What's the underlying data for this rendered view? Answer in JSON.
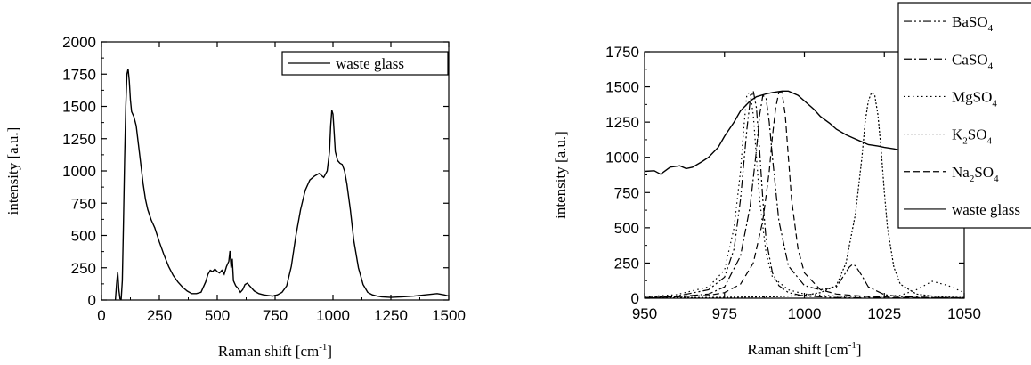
{
  "chart_data": [
    {
      "type": "line",
      "xlabel": "Raman shift [cm",
      "xlabel_sup": "-1",
      "xlabel_tail": "]",
      "ylabel": "intensity [a.u.]",
      "xlim": [
        0,
        1500
      ],
      "ylim": [
        0,
        2000
      ],
      "xticks": [
        0,
        250,
        500,
        750,
        1000,
        1250,
        1500
      ],
      "yticks": [
        0,
        250,
        500,
        750,
        1000,
        1250,
        1500,
        1750,
        2000
      ],
      "legend_position": "top-right",
      "series": [
        {
          "name": "waste glass",
          "style": "solid",
          "x": [
            60,
            65,
            70,
            75,
            80,
            85,
            90,
            95,
            100,
            105,
            110,
            115,
            120,
            125,
            130,
            140,
            150,
            160,
            170,
            180,
            190,
            200,
            215,
            230,
            250,
            270,
            290,
            310,
            330,
            350,
            370,
            390,
            410,
            430,
            450,
            460,
            470,
            480,
            490,
            500,
            510,
            520,
            530,
            540,
            550,
            555,
            560,
            565,
            570,
            580,
            590,
            600,
            610,
            620,
            630,
            640,
            660,
            680,
            700,
            720,
            740,
            760,
            780,
            800,
            820,
            840,
            860,
            880,
            900,
            920,
            940,
            960,
            975,
            985,
            990,
            995,
            1000,
            1005,
            1010,
            1020,
            1030,
            1040,
            1050,
            1060,
            1075,
            1090,
            1110,
            1130,
            1150,
            1170,
            1190,
            1210,
            1250,
            1300,
            1350,
            1400,
            1450,
            1480,
            1500
          ],
          "y": [
            0,
            120,
            220,
            80,
            10,
            5,
            150,
            600,
            1100,
            1500,
            1750,
            1790,
            1700,
            1550,
            1460,
            1420,
            1350,
            1200,
            1050,
            900,
            780,
            700,
            620,
            560,
            450,
            350,
            260,
            190,
            140,
            100,
            70,
            50,
            50,
            60,
            140,
            200,
            230,
            220,
            240,
            220,
            210,
            230,
            200,
            260,
            300,
            380,
            250,
            320,
            150,
            110,
            90,
            60,
            80,
            120,
            130,
            110,
            70,
            50,
            40,
            35,
            30,
            40,
            60,
            110,
            260,
            500,
            700,
            850,
            930,
            960,
            980,
            950,
            1000,
            1150,
            1350,
            1470,
            1440,
            1300,
            1150,
            1080,
            1060,
            1050,
            1000,
            900,
            700,
            460,
            250,
            120,
            60,
            40,
            30,
            25,
            20,
            25,
            30,
            40,
            50,
            40,
            30
          ]
        }
      ]
    },
    {
      "type": "line",
      "xlabel": "Raman shift [cm",
      "xlabel_sup": "-1",
      "xlabel_tail": "]",
      "ylabel": "intensity [a.u.]",
      "xlim": [
        950,
        1050
      ],
      "ylim": [
        0,
        1750
      ],
      "xticks": [
        950,
        975,
        1000,
        1025,
        1050
      ],
      "yticks": [
        0,
        250,
        500,
        750,
        1000,
        1250,
        1500,
        1750
      ],
      "legend_position": "top-right",
      "series": [
        {
          "name": "BaSO",
          "sub": "4",
          "style": "dash-dot-dot",
          "x": [
            950,
            960,
            970,
            975,
            978,
            980,
            981,
            982,
            983,
            984,
            985,
            986,
            987,
            988,
            990,
            992,
            995,
            1000,
            1010,
            1020,
            1030,
            1040,
            1050
          ],
          "y": [
            5,
            15,
            60,
            150,
            350,
            700,
            950,
            1200,
            1400,
            1470,
            1350,
            1050,
            700,
            420,
            180,
            90,
            40,
            15,
            5,
            3,
            2,
            2,
            2
          ]
        },
        {
          "name": "CaSO",
          "sub": "4",
          "style": "dash-dot",
          "x": [
            950,
            960,
            970,
            975,
            980,
            983,
            985,
            986,
            987,
            988,
            989,
            990,
            992,
            995,
            1000,
            1005,
            1010,
            1012,
            1014,
            1015,
            1016,
            1018,
            1020,
            1025,
            1030,
            1040,
            1050
          ],
          "y": [
            5,
            10,
            30,
            80,
            300,
            650,
            1050,
            1300,
            1440,
            1420,
            1250,
            1000,
            550,
            230,
            90,
            60,
            80,
            150,
            220,
            240,
            230,
            160,
            80,
            25,
            12,
            5,
            3
          ]
        },
        {
          "name": "MgSO",
          "sub": "4",
          "style": "dotted",
          "x": [
            950,
            960,
            970,
            975,
            978,
            980,
            981,
            982,
            983,
            984,
            985,
            986,
            988,
            990,
            995,
            1000,
            1010,
            1020,
            1030,
            1035,
            1040,
            1045,
            1050
          ],
          "y": [
            10,
            25,
            80,
            200,
            500,
            900,
            1200,
            1450,
            1460,
            1300,
            1000,
            700,
            320,
            150,
            60,
            30,
            15,
            10,
            20,
            60,
            120,
            90,
            40
          ]
        },
        {
          "name": "K",
          "sub": "2",
          "name_tail": "SO",
          "sub_tail": "4",
          "style": "dense-dot",
          "x": [
            950,
            970,
            990,
            1000,
            1005,
            1010,
            1013,
            1016,
            1018,
            1019,
            1020,
            1021,
            1022,
            1023,
            1024,
            1025,
            1026,
            1028,
            1030,
            1035,
            1040,
            1045,
            1050
          ],
          "y": [
            3,
            5,
            10,
            20,
            40,
            90,
            250,
            600,
            1000,
            1250,
            1400,
            1460,
            1440,
            1300,
            1050,
            750,
            500,
            220,
            100,
            30,
            15,
            8,
            5
          ]
        },
        {
          "name": "Na",
          "sub": "2",
          "name_tail": "SO",
          "sub_tail": "4",
          "style": "dashed",
          "x": [
            950,
            960,
            970,
            975,
            980,
            984,
            987,
            989,
            990,
            991,
            992,
            993,
            994,
            995,
            996,
            998,
            1000,
            1005,
            1010,
            1015,
            1020,
            1030,
            1050
          ],
          "y": [
            5,
            10,
            20,
            40,
            100,
            250,
            550,
            900,
            1150,
            1350,
            1460,
            1460,
            1300,
            1000,
            700,
            350,
            180,
            60,
            30,
            20,
            12,
            6,
            3
          ]
        },
        {
          "name": "waste glass",
          "style": "solid",
          "x": [
            950,
            953,
            955,
            958,
            961,
            963,
            965,
            968,
            970,
            973,
            975,
            978,
            980,
            983,
            985,
            988,
            990,
            993,
            995,
            998,
            1000,
            1003,
            1005,
            1008,
            1010,
            1013,
            1015,
            1018,
            1020,
            1023,
            1025,
            1028,
            1030,
            1033,
            1035,
            1038,
            1040,
            1045,
            1050
          ],
          "y": [
            900,
            905,
            880,
            930,
            940,
            920,
            930,
            970,
            1000,
            1070,
            1150,
            1250,
            1330,
            1400,
            1430,
            1450,
            1460,
            1470,
            1470,
            1440,
            1400,
            1340,
            1290,
            1240,
            1200,
            1160,
            1140,
            1110,
            1090,
            1080,
            1070,
            1060,
            1050,
            1040,
            1050,
            1040,
            1030,
            1030,
            1030
          ]
        }
      ]
    }
  ]
}
